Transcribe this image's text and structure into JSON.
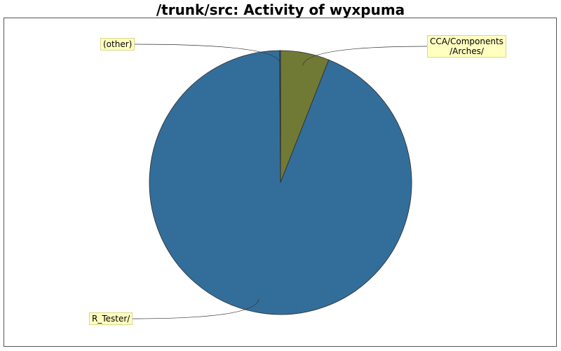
{
  "chart_data": {
    "type": "pie",
    "title": "/trunk/src: Activity of wyxpuma",
    "slices": [
      {
        "label": "CCA/Components/Arches/",
        "label_lines": [
          "CCA/Components",
          "/Arches/"
        ],
        "value": 6.0,
        "color": "#717a35"
      },
      {
        "label": "R_Tester/",
        "label_lines": [
          "R_Tester/"
        ],
        "value": 93.9,
        "color": "#336e9a"
      },
      {
        "label": "(other)",
        "label_lines": [
          "(other)"
        ],
        "value": 0.1,
        "color": "#336e9a"
      }
    ],
    "start_angle_deg": 90,
    "direction": "clockwise"
  }
}
